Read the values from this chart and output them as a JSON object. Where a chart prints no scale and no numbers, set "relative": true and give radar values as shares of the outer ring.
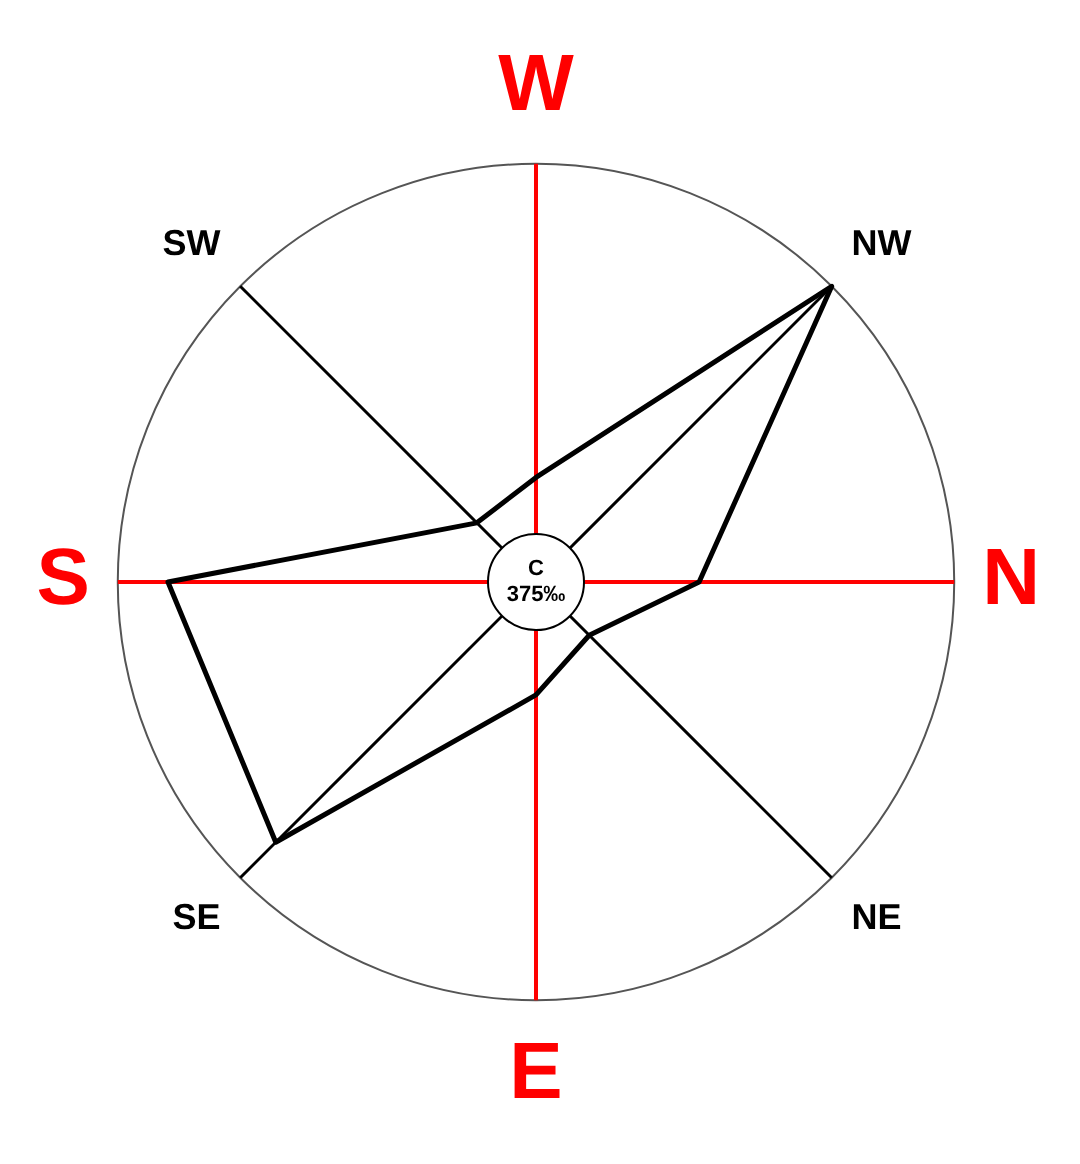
{
  "chart_data": {
    "type": "radar",
    "relative": true,
    "categories": [
      "W",
      "NW",
      "N",
      "NE",
      "E",
      "SE",
      "S",
      "SW"
    ],
    "series": [
      {
        "color": "#000000",
        "values": [
          0.25,
          1,
          0.39,
          0.18,
          0.27,
          0.88,
          0.88,
          0.2
        ]
      }
    ],
    "annotations": [
      "C",
      "375‰"
    ],
    "grid": true,
    "legend": false,
    "marker": "none",
    "line_style": "solid"
  }
}
